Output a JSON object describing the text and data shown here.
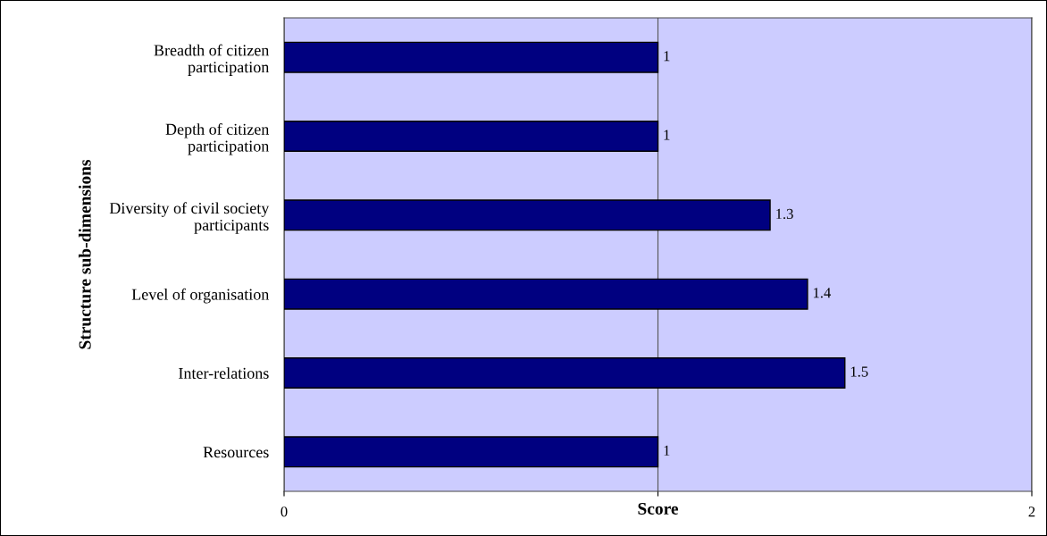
{
  "chart_data": {
    "type": "bar",
    "orientation": "horizontal",
    "xlabel": "Score",
    "ylabel": "Structure sub-dimensions",
    "categories": [
      "Breadth of citizen\nparticipation",
      "Depth of citizen\nparticipation",
      "Diversity of civil society\nparticipants",
      "Level of organisation",
      "Inter-relations",
      "Resources"
    ],
    "values": [
      1,
      1,
      1.3,
      1.4,
      1.5,
      1
    ],
    "color": "#000080",
    "data_labels": true,
    "xlim": [
      0,
      2
    ],
    "xticks": [
      0,
      {
        "value": 1,
        "label": null
      },
      2
    ],
    "grid": "x"
  }
}
